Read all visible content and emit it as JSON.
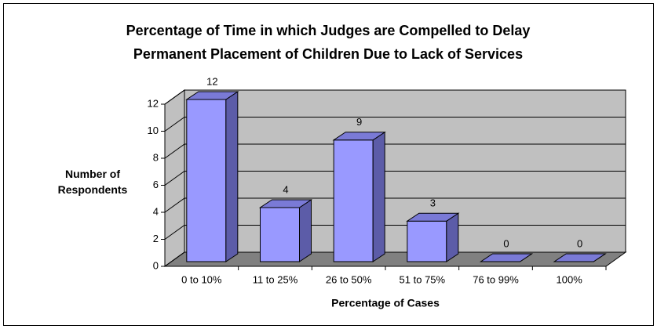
{
  "chart_data": {
    "type": "bar",
    "title": "Percentage of Time in which Judges are Compelled to Delay Permanent Placement of Children Due to Lack of Services",
    "x_label": "Percentage of Cases",
    "y_label": "Number of Respondents",
    "categories": [
      "0 to 10%",
      "11 to 25%",
      "26 to 50%",
      "51 to 75%",
      "76 to 99%",
      "100%"
    ],
    "values": [
      12,
      4,
      9,
      3,
      0,
      0
    ],
    "color": "#9999ff",
    "ylim": [
      0,
      12
    ],
    "yticks": [
      0,
      2,
      4,
      6,
      8,
      10,
      12
    ],
    "grid": true
  }
}
